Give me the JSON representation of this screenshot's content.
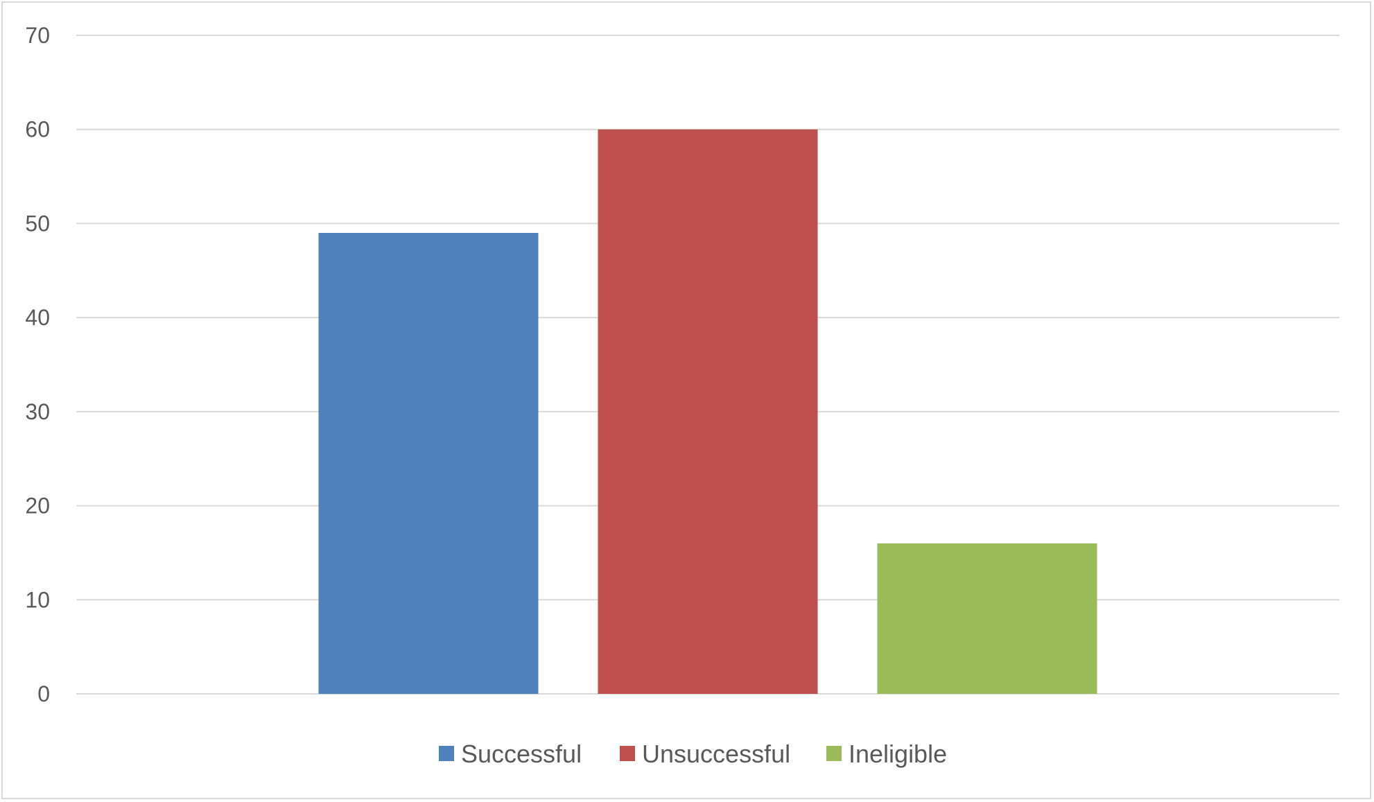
{
  "chart_data": {
    "type": "bar",
    "series": [
      {
        "name": "Successful",
        "values": [
          49
        ],
        "color": "#4f81bd"
      },
      {
        "name": "Unsuccessful",
        "values": [
          60
        ],
        "color": "#c0504d"
      },
      {
        "name": "Ineligible",
        "values": [
          16
        ],
        "color": "#9bbb59"
      }
    ],
    "ylim": [
      0,
      70
    ],
    "yticks": [
      "0",
      "10",
      "20",
      "30",
      "40",
      "50",
      "60",
      "70"
    ],
    "grid": true,
    "legend_position": "bottom",
    "colors": {
      "grid": "#d9d9d9",
      "text": "#595959",
      "border": "#d9d9d9"
    }
  }
}
